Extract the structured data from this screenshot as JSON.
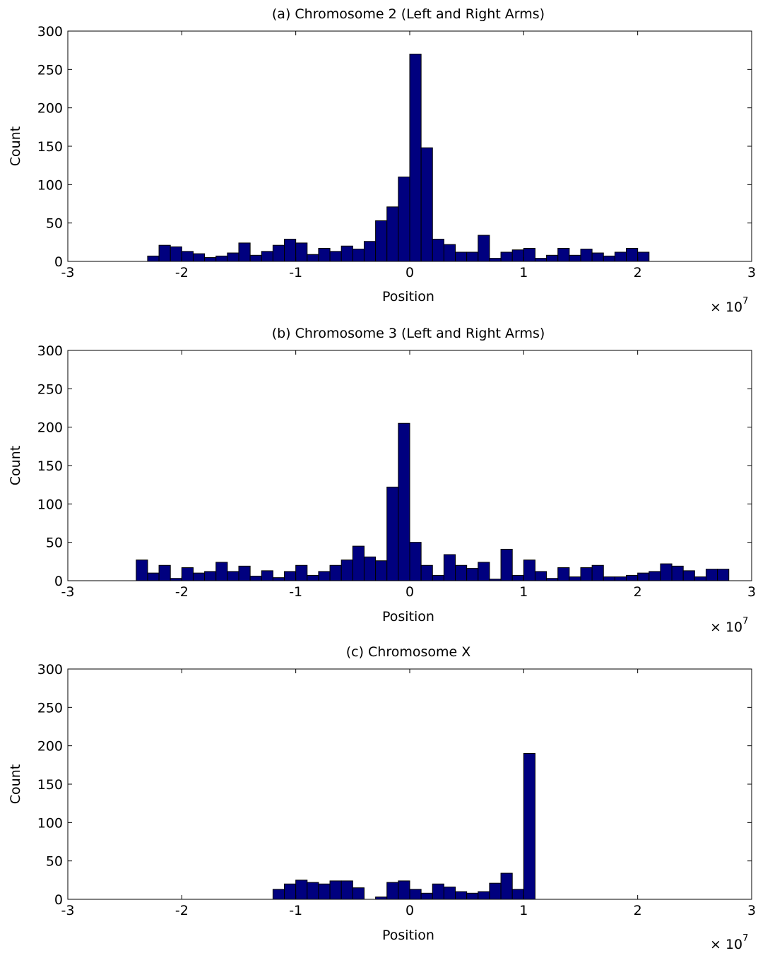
{
  "chart_data": [
    {
      "type": "bar",
      "title": "(a) Chromosome 2 (Left and Right Arms)",
      "xlabel": "Position",
      "ylabel": "Count",
      "x_multiplier": "× 10",
      "x_multiplier_exp": "7",
      "xlim": [
        -3,
        3
      ],
      "ylim": [
        0,
        300
      ],
      "xticks": [
        "-3",
        "-2",
        "-1",
        "0",
        "1",
        "2",
        "3"
      ],
      "yticks": [
        "0",
        "50",
        "100",
        "150",
        "200",
        "250",
        "300"
      ],
      "bin_width": 0.1,
      "bin_start": -2.3,
      "values": [
        7,
        21,
        19,
        13,
        10,
        5,
        7,
        11,
        24,
        8,
        13,
        21,
        29,
        24,
        9,
        17,
        13,
        20,
        16,
        26,
        53,
        71,
        110,
        270,
        148,
        29,
        22,
        12,
        12,
        34,
        4,
        12,
        15,
        17,
        4,
        8,
        17,
        8,
        16,
        11,
        7,
        12,
        17,
        12
      ]
    },
    {
      "type": "bar",
      "title": "(b) Chromosome 3 (Left and Right Arms)",
      "xlabel": "Position",
      "ylabel": "Count",
      "x_multiplier": "× 10",
      "x_multiplier_exp": "7",
      "xlim": [
        -3,
        3
      ],
      "ylim": [
        0,
        300
      ],
      "xticks": [
        "-3",
        "-2",
        "-1",
        "0",
        "1",
        "2",
        "3"
      ],
      "yticks": [
        "0",
        "50",
        "100",
        "150",
        "200",
        "250",
        "300"
      ],
      "bin_width": 0.1,
      "bin_start": -2.4,
      "values": [
        27,
        10,
        20,
        3,
        17,
        10,
        12,
        24,
        12,
        19,
        6,
        13,
        4,
        12,
        20,
        7,
        12,
        20,
        27,
        45,
        31,
        26,
        122,
        205,
        50,
        20,
        7,
        34,
        20,
        16,
        24,
        2,
        41,
        7,
        27,
        12,
        3,
        17,
        5,
        17,
        20,
        5,
        5,
        7,
        10,
        12,
        22,
        19,
        13,
        5,
        15,
        15
      ]
    },
    {
      "type": "bar",
      "title": "(c) Chromosome X",
      "xlabel": "Position",
      "ylabel": "Count",
      "x_multiplier": "× 10",
      "x_multiplier_exp": "7",
      "xlim": [
        -3,
        3
      ],
      "ylim": [
        0,
        300
      ],
      "xticks": [
        "-3",
        "-2",
        "-1",
        "0",
        "1",
        "2",
        "3"
      ],
      "yticks": [
        "0",
        "50",
        "100",
        "150",
        "200",
        "250",
        "300"
      ],
      "bin_width": 0.1,
      "bin_start": -1.2,
      "values": [
        13,
        20,
        25,
        22,
        20,
        24,
        24,
        15,
        0,
        3,
        22,
        24,
        13,
        8,
        20,
        16,
        10,
        8,
        10,
        21,
        34,
        13,
        190
      ]
    }
  ],
  "colors": {
    "bar_fill": "#00007f",
    "bar_edge": "#000000",
    "axis": "#000000",
    "background": "#ffffff"
  }
}
